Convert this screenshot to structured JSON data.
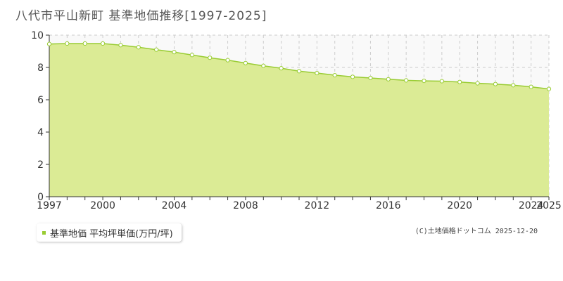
{
  "title": "八代市平山新町 基準地価推移[1997-2025]",
  "legend": {
    "label": "基準地価 平均坪単価(万円/坪)"
  },
  "credit": "(C)土地価格ドットコム 2025-12-20",
  "colors": {
    "area_fill": "#dbeb95",
    "line": "#99cc33",
    "marker_fill": "#ffffff",
    "grid": "#cccccc",
    "plot_bg": "#f9f9f9",
    "axis": "#333333"
  },
  "chart_data": {
    "type": "area",
    "title": "八代市平山新町 基準地価推移[1997-2025]",
    "xlabel": "",
    "ylabel": "",
    "ylim": [
      0,
      10
    ],
    "yticks": [
      "0",
      "2",
      "4",
      "6",
      "8",
      "10"
    ],
    "xlim": [
      1997,
      2025
    ],
    "xticks": [
      "1997",
      "2000",
      "2004",
      "2008",
      "2012",
      "2016",
      "2020",
      "2024",
      "2025"
    ],
    "grid": true,
    "legend_position": "bottom-left",
    "series": [
      {
        "name": "基準地価 平均坪単価(万円/坪)",
        "x": [
          1997,
          1998,
          1999,
          2000,
          2001,
          2002,
          2003,
          2004,
          2005,
          2006,
          2007,
          2008,
          2009,
          2010,
          2011,
          2012,
          2013,
          2014,
          2015,
          2016,
          2017,
          2018,
          2019,
          2020,
          2021,
          2022,
          2023,
          2024,
          2025
        ],
        "values": [
          9.45,
          9.48,
          9.48,
          9.48,
          9.38,
          9.25,
          9.1,
          8.95,
          8.77,
          8.6,
          8.45,
          8.27,
          8.1,
          7.95,
          7.77,
          7.65,
          7.52,
          7.42,
          7.35,
          7.27,
          7.2,
          7.17,
          7.15,
          7.1,
          7.02,
          6.97,
          6.9,
          6.8,
          6.67
        ]
      }
    ]
  }
}
